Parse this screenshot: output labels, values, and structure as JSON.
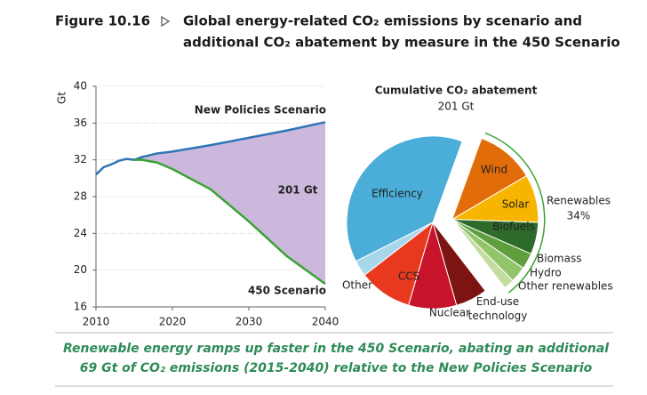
{
  "figure_label": "Figure 10.16",
  "title_lines": [
    "Global energy-related CO₂ emissions by scenario and",
    "additional CO₂ abatement by measure in the 450 Scenario"
  ],
  "caption_lines": [
    "Renewable energy ramps up faster in the 450 Scenario, abating an additional",
    "69 Gt of CO₂ emissions (2015-2040) relative to the New Policies Scenario"
  ],
  "chart_data": [
    {
      "type": "line",
      "y_label": "Gt",
      "x": [
        2010,
        2011,
        2012,
        2013,
        2014,
        2015,
        2016,
        2018,
        2020,
        2025,
        2030,
        2035,
        2040
      ],
      "xlim": [
        2010,
        2040
      ],
      "xticks": [
        2010,
        2020,
        2030,
        2040
      ],
      "ylim": [
        16,
        40
      ],
      "yticks": [
        16,
        20,
        24,
        28,
        32,
        36,
        40
      ],
      "grid": true,
      "series": [
        {
          "name": "New Policies Scenario",
          "color": "#2e75b6",
          "values": [
            30.4,
            31.2,
            31.5,
            31.9,
            32.1,
            32.0,
            32.3,
            32.7,
            32.9,
            33.6,
            34.4,
            35.2,
            36.1
          ]
        },
        {
          "name": "450 Scenario",
          "color": "#3aa335",
          "values": [
            null,
            null,
            null,
            null,
            null,
            32.0,
            32.0,
            31.7,
            31.0,
            28.8,
            25.3,
            21.5,
            18.5
          ]
        }
      ],
      "area_color": "#cbb8dc",
      "area_label": "201 Gt"
    },
    {
      "type": "pie",
      "title": "Cumulative CO₂ abatement",
      "subtitle": "201 Gt",
      "slices": [
        {
          "name": "Wind",
          "value": 11,
          "color": "#e36c0a"
        },
        {
          "name": "Solar",
          "value": 9,
          "color": "#f7b500"
        },
        {
          "name": "Biofuels",
          "value": 6,
          "color": "#2e6b2a"
        },
        {
          "name": "Biomass",
          "value": 3,
          "color": "#5f9e3c"
        },
        {
          "name": "Hydro",
          "value": 3,
          "color": "#92c46a"
        },
        {
          "name": "Other renewables",
          "value": 2,
          "color": "#c3dd9f"
        },
        {
          "name": "End-use technology",
          "value": 6,
          "color": "#7d1414"
        },
        {
          "name": "Nuclear",
          "value": 9,
          "color": "#c8142a"
        },
        {
          "name": "CCS",
          "value": 10,
          "color": "#e8391f"
        },
        {
          "name": "Other",
          "value": 3,
          "color": "#a7d7ea"
        },
        {
          "name": "Efficiency",
          "value": 38,
          "color": "#4aaed8"
        }
      ],
      "group": {
        "name": "Renewables",
        "value": 34,
        "value_label": "34%",
        "color": "#3aa335"
      }
    }
  ]
}
